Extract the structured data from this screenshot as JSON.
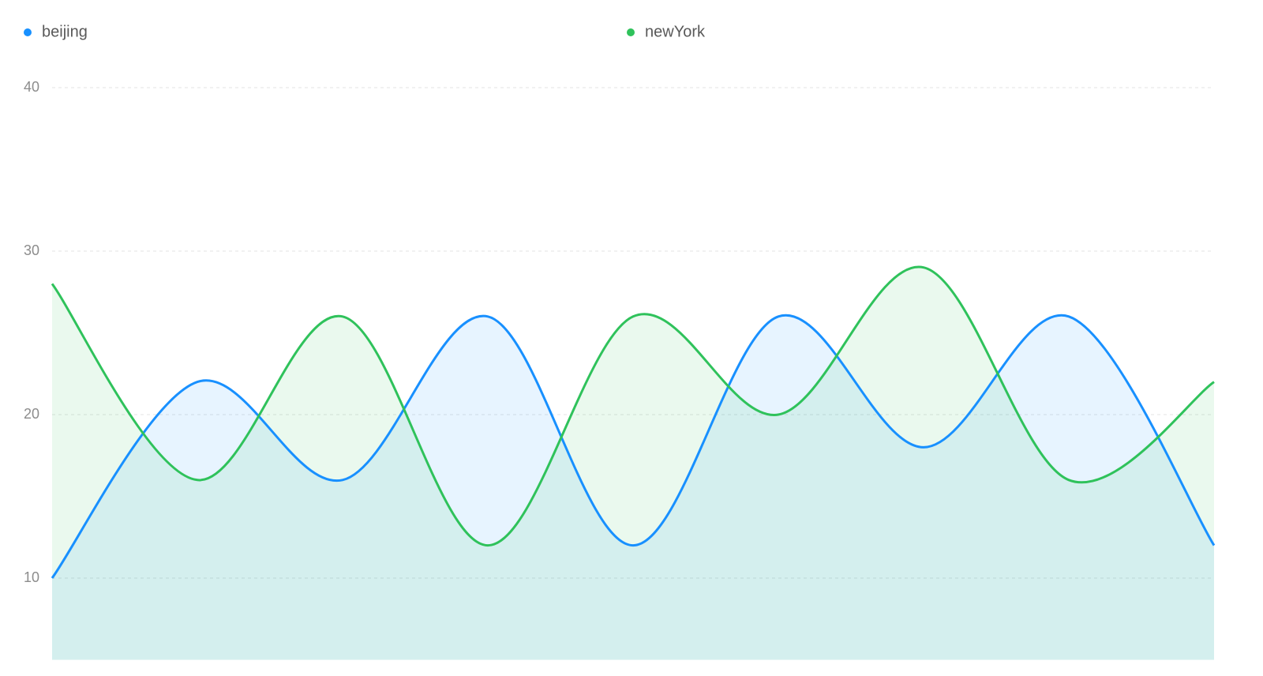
{
  "chart_data": {
    "type": "area",
    "categories": [
      null,
      null,
      null,
      null,
      null,
      null,
      null,
      null,
      null
    ],
    "series": [
      {
        "name": "beijing",
        "color": "#1890ff",
        "values": [
          10,
          22,
          16,
          26,
          12,
          26,
          18,
          26,
          12
        ]
      },
      {
        "name": "newYork",
        "color": "#2fc25b",
        "values": [
          28,
          16,
          26,
          12,
          26,
          20,
          29,
          16,
          22
        ]
      }
    ],
    "ylim": [
      5,
      40
    ],
    "yticks": [
      10,
      20,
      30,
      40
    ],
    "grid": true,
    "smooth": true,
    "legend": "top"
  }
}
